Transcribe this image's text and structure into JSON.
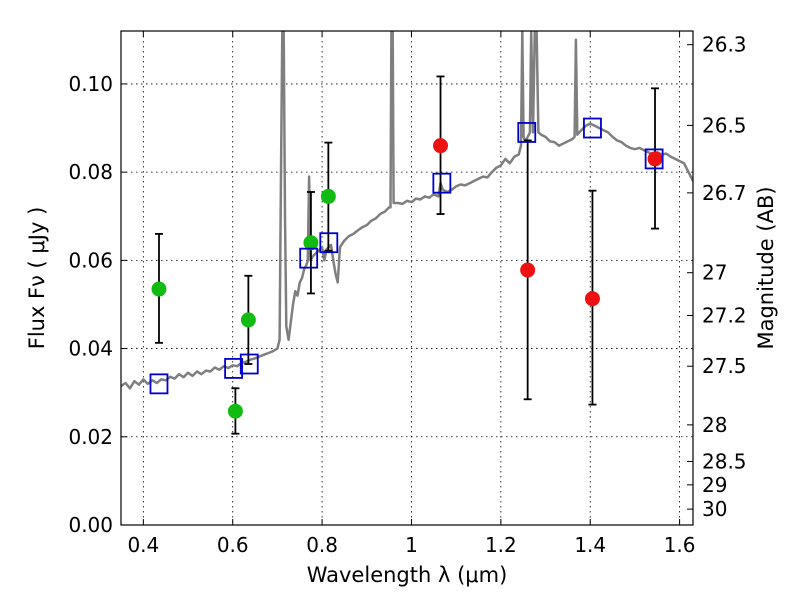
{
  "chart_data": {
    "type": "scatter",
    "xlabel": "Wavelength  λ (μm)",
    "ylabel": "Flux  Fν  ( μJy )",
    "y2label": "Magnitude (AB)",
    "xlim": [
      0.35,
      1.63
    ],
    "ylim": [
      0.0,
      0.112
    ],
    "grid": true,
    "x_ticks": [
      0.4,
      0.6,
      0.8,
      1.0,
      1.2,
      1.4,
      1.6
    ],
    "x_tick_labels": [
      "0.4",
      "0.6",
      "0.8",
      "1",
      "1.2",
      "1.4",
      "1.6"
    ],
    "y_ticks": [
      0.0,
      0.02,
      0.04,
      0.06,
      0.08,
      0.1
    ],
    "y_tick_labels": [
      "0.00",
      "0.02",
      "0.04",
      "0.06",
      "0.08",
      "0.10"
    ],
    "y2_ticks": [
      {
        "label": "26.3",
        "flux": 0.1089
      },
      {
        "label": "26.5",
        "flux": 0.0906
      },
      {
        "label": "26.7",
        "flux": 0.0753
      },
      {
        "label": "27",
        "flux": 0.0572
      },
      {
        "label": "27.2",
        "flux": 0.0475
      },
      {
        "label": "27.5",
        "flux": 0.036
      },
      {
        "label": "28",
        "flux": 0.0227
      },
      {
        "label": "28.5",
        "flux": 0.0144
      },
      {
        "label": "29",
        "flux": 0.0091
      },
      {
        "label": "30",
        "flux": 0.0036
      }
    ],
    "colors": {
      "model": "#7f7f7f",
      "green": "#11bb11",
      "red": "#ee1111",
      "square": "#0000cc",
      "errorbar": "#000000"
    },
    "series": [
      {
        "marker": "circle",
        "color": "green",
        "points": [
          {
            "x": 0.435,
            "y": 0.0535,
            "err": [
              0.0413,
              0.066
            ]
          },
          {
            "x": 0.606,
            "y": 0.0258,
            "err": [
              0.0207,
              0.031
            ]
          },
          {
            "x": 0.635,
            "y": 0.0465,
            "err": [
              0.0365,
              0.0565
            ]
          },
          {
            "x": 0.775,
            "y": 0.064,
            "err": [
              0.0525,
              0.0755
            ]
          },
          {
            "x": 0.814,
            "y": 0.0745,
            "err": [
              0.0622,
              0.0867
            ]
          }
        ]
      },
      {
        "marker": "circle",
        "color": "red",
        "points": [
          {
            "x": 1.065,
            "y": 0.086,
            "err": [
              0.0705,
              0.1017
            ]
          },
          {
            "x": 1.26,
            "y": 0.0578,
            "err": [
              0.0285,
              0.0872
            ]
          },
          {
            "x": 1.405,
            "y": 0.0513,
            "err": [
              0.0273,
              0.0758
            ]
          },
          {
            "x": 1.545,
            "y": 0.083,
            "err": [
              0.0672,
              0.099
            ]
          }
        ]
      },
      {
        "marker": "square",
        "color": "square",
        "points": [
          {
            "x": 0.435,
            "y": 0.032
          },
          {
            "x": 0.602,
            "y": 0.0355
          },
          {
            "x": 0.637,
            "y": 0.0365
          },
          {
            "x": 0.77,
            "y": 0.0605
          },
          {
            "x": 0.815,
            "y": 0.064
          },
          {
            "x": 1.068,
            "y": 0.0775
          },
          {
            "x": 1.258,
            "y": 0.089
          },
          {
            "x": 1.405,
            "y": 0.09
          },
          {
            "x": 1.543,
            "y": 0.083
          }
        ]
      }
    ],
    "model_spectrum": [
      [
        0.35,
        0.0315
      ],
      [
        0.36,
        0.0322
      ],
      [
        0.37,
        0.031
      ],
      [
        0.38,
        0.0326
      ],
      [
        0.39,
        0.0318
      ],
      [
        0.4,
        0.033
      ],
      [
        0.41,
        0.032
      ],
      [
        0.42,
        0.0328
      ],
      [
        0.43,
        0.0322
      ],
      [
        0.44,
        0.033
      ],
      [
        0.45,
        0.0328
      ],
      [
        0.46,
        0.0336
      ],
      [
        0.47,
        0.0332
      ],
      [
        0.48,
        0.0342
      ],
      [
        0.49,
        0.0335
      ],
      [
        0.5,
        0.0345
      ],
      [
        0.51,
        0.0338
      ],
      [
        0.52,
        0.0348
      ],
      [
        0.53,
        0.0342
      ],
      [
        0.54,
        0.035
      ],
      [
        0.55,
        0.0348
      ],
      [
        0.56,
        0.0357
      ],
      [
        0.57,
        0.0352
      ],
      [
        0.58,
        0.036
      ],
      [
        0.59,
        0.0356
      ],
      [
        0.6,
        0.0362
      ],
      [
        0.61,
        0.036
      ],
      [
        0.62,
        0.0368
      ],
      [
        0.63,
        0.037
      ],
      [
        0.64,
        0.0375
      ],
      [
        0.65,
        0.0378
      ],
      [
        0.66,
        0.0382
      ],
      [
        0.67,
        0.0386
      ],
      [
        0.68,
        0.039
      ],
      [
        0.69,
        0.0394
      ],
      [
        0.7,
        0.04
      ],
      [
        0.705,
        0.042
      ],
      [
        0.708,
        0.08
      ],
      [
        0.711,
        0.112
      ],
      [
        0.714,
        0.112
      ],
      [
        0.717,
        0.07
      ],
      [
        0.72,
        0.045
      ],
      [
        0.725,
        0.042
      ],
      [
        0.73,
        0.046
      ],
      [
        0.735,
        0.05
      ],
      [
        0.74,
        0.053
      ],
      [
        0.745,
        0.052
      ],
      [
        0.75,
        0.055
      ],
      [
        0.755,
        0.056
      ],
      [
        0.76,
        0.058
      ],
      [
        0.765,
        0.059
      ],
      [
        0.768,
        0.06
      ],
      [
        0.771,
        0.079
      ],
      [
        0.774,
        0.06
      ],
      [
        0.78,
        0.061
      ],
      [
        0.785,
        0.0615
      ],
      [
        0.79,
        0.062
      ],
      [
        0.795,
        0.0625
      ],
      [
        0.8,
        0.063
      ],
      [
        0.805,
        0.06
      ],
      [
        0.81,
        0.0625
      ],
      [
        0.815,
        0.063
      ],
      [
        0.82,
        0.0635
      ],
      [
        0.825,
        0.06
      ],
      [
        0.83,
        0.057
      ],
      [
        0.835,
        0.055
      ],
      [
        0.84,
        0.063
      ],
      [
        0.85,
        0.0645
      ],
      [
        0.86,
        0.0655
      ],
      [
        0.87,
        0.066
      ],
      [
        0.88,
        0.0668
      ],
      [
        0.89,
        0.0675
      ],
      [
        0.9,
        0.068
      ],
      [
        0.91,
        0.069
      ],
      [
        0.92,
        0.0695
      ],
      [
        0.93,
        0.0705
      ],
      [
        0.94,
        0.071
      ],
      [
        0.95,
        0.072
      ],
      [
        0.953,
        0.072
      ],
      [
        0.955,
        0.112
      ],
      [
        0.958,
        0.112
      ],
      [
        0.96,
        0.073
      ],
      [
        0.97,
        0.073
      ],
      [
        0.98,
        0.0728
      ],
      [
        0.99,
        0.0735
      ],
      [
        1.0,
        0.0732
      ],
      [
        1.01,
        0.074
      ],
      [
        1.02,
        0.0738
      ],
      [
        1.03,
        0.0745
      ],
      [
        1.04,
        0.0742
      ],
      [
        1.05,
        0.075
      ],
      [
        1.06,
        0.0745
      ],
      [
        1.065,
        0.0775
      ],
      [
        1.07,
        0.076
      ],
      [
        1.08,
        0.0755
      ],
      [
        1.09,
        0.076
      ],
      [
        1.1,
        0.0768
      ],
      [
        1.11,
        0.0772
      ],
      [
        1.12,
        0.077
      ],
      [
        1.13,
        0.0775
      ],
      [
        1.14,
        0.078
      ],
      [
        1.15,
        0.0785
      ],
      [
        1.16,
        0.079
      ],
      [
        1.17,
        0.0788
      ],
      [
        1.18,
        0.08
      ],
      [
        1.19,
        0.081
      ],
      [
        1.2,
        0.0815
      ],
      [
        1.21,
        0.083
      ],
      [
        1.22,
        0.082
      ],
      [
        1.23,
        0.0835
      ],
      [
        1.24,
        0.084
      ],
      [
        1.245,
        0.086
      ],
      [
        1.248,
        0.112
      ],
      [
        1.251,
        0.088
      ],
      [
        1.255,
        0.087
      ],
      [
        1.26,
        0.088
      ],
      [
        1.265,
        0.089
      ],
      [
        1.268,
        0.112
      ],
      [
        1.272,
        0.089
      ],
      [
        1.276,
        0.112
      ],
      [
        1.28,
        0.112
      ],
      [
        1.284,
        0.089
      ],
      [
        1.29,
        0.0885
      ],
      [
        1.3,
        0.088
      ],
      [
        1.31,
        0.087
      ],
      [
        1.32,
        0.0868
      ],
      [
        1.33,
        0.086
      ],
      [
        1.34,
        0.0865
      ],
      [
        1.35,
        0.087
      ],
      [
        1.36,
        0.0875
      ],
      [
        1.365,
        0.088
      ],
      [
        1.368,
        0.11
      ],
      [
        1.371,
        0.0885
      ],
      [
        1.38,
        0.0895
      ],
      [
        1.39,
        0.0905
      ],
      [
        1.4,
        0.091
      ],
      [
        1.41,
        0.0905
      ],
      [
        1.42,
        0.09
      ],
      [
        1.43,
        0.0895
      ],
      [
        1.44,
        0.089
      ],
      [
        1.45,
        0.088
      ],
      [
        1.46,
        0.0872
      ],
      [
        1.47,
        0.0868
      ],
      [
        1.48,
        0.086
      ],
      [
        1.49,
        0.0855
      ],
      [
        1.5,
        0.0852
      ],
      [
        1.51,
        0.0855
      ],
      [
        1.52,
        0.085
      ],
      [
        1.53,
        0.0845
      ],
      [
        1.54,
        0.084
      ],
      [
        1.55,
        0.0845
      ],
      [
        1.56,
        0.084
      ],
      [
        1.57,
        0.0842
      ],
      [
        1.58,
        0.0835
      ],
      [
        1.59,
        0.083
      ],
      [
        1.6,
        0.0825
      ],
      [
        1.61,
        0.082
      ],
      [
        1.62,
        0.08
      ],
      [
        1.63,
        0.078
      ]
    ]
  }
}
